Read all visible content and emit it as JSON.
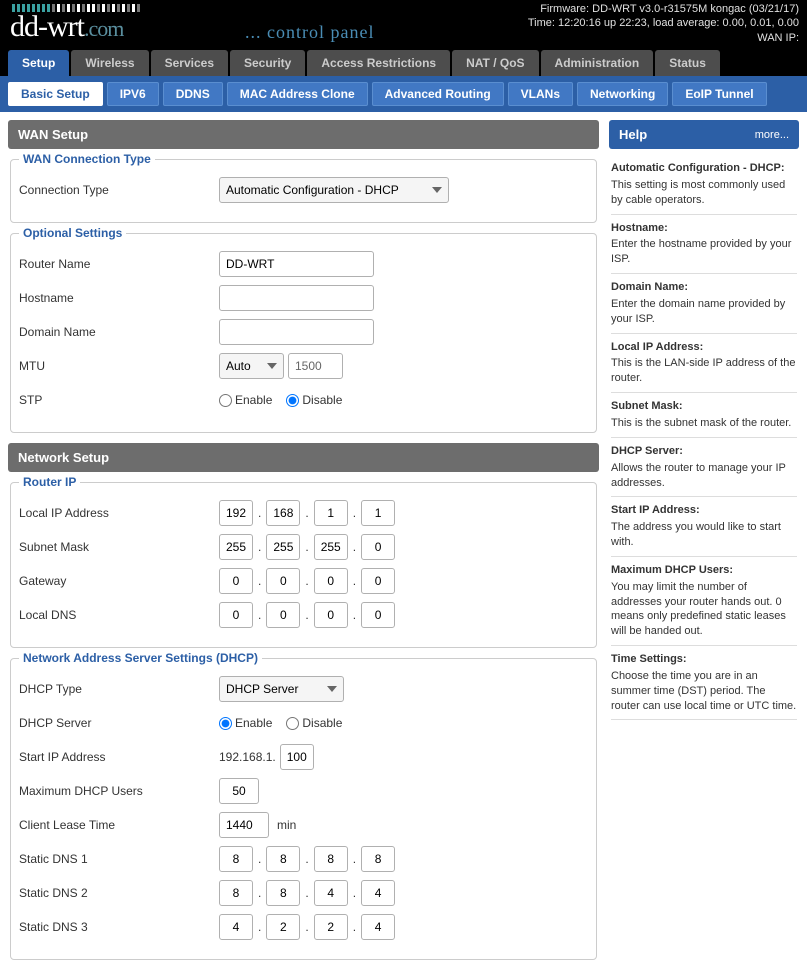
{
  "header": {
    "logo_main": "dd-wrt",
    "logo_suffix": ".com",
    "control_panel": "... control panel",
    "firmware": "Firmware: DD-WRT v3.0-r31575M kongac (03/21/17)",
    "time": "Time: 12:20:16 up 22:23, load average: 0.00, 0.01, 0.00",
    "wan_ip_label": "WAN IP:",
    "bar_colors": [
      "#3aa0a0",
      "#3aa0a0",
      "#3aa0a0",
      "#3aa0a0",
      "#3aa0a0",
      "#3aa0a0",
      "#3aa0a0",
      "#3aa0a0",
      "#777",
      "#fff",
      "#777",
      "#fff",
      "#777",
      "#fff",
      "#777",
      "#fff",
      "#fff",
      "#777",
      "#fff",
      "#777",
      "#fff",
      "#777",
      "#fff",
      "#777",
      "#fff",
      "#777"
    ]
  },
  "main_tabs": [
    "Setup",
    "Wireless",
    "Services",
    "Security",
    "Access Restrictions",
    "NAT / QoS",
    "Administration",
    "Status"
  ],
  "main_tab_active": 0,
  "sub_tabs": [
    "Basic Setup",
    "IPV6",
    "DDNS",
    "MAC Address Clone",
    "Advanced Routing",
    "VLANs",
    "Networking",
    "EoIP Tunnel"
  ],
  "sub_tab_active": 0,
  "wan": {
    "section_title": "WAN Setup",
    "fs1_title": "WAN Connection Type",
    "conn_type_label": "Connection Type",
    "conn_type_value": "Automatic Configuration - DHCP",
    "fs2_title": "Optional Settings",
    "router_name_label": "Router Name",
    "router_name_value": "DD-WRT",
    "hostname_label": "Hostname",
    "hostname_value": "",
    "domain_label": "Domain Name",
    "domain_value": "",
    "mtu_label": "MTU",
    "mtu_mode": "Auto",
    "mtu_value": "1500",
    "stp_label": "STP",
    "enable_text": "Enable",
    "disable_text": "Disable"
  },
  "net": {
    "section_title": "Network Setup",
    "fs1_title": "Router IP",
    "local_ip_label": "Local IP Address",
    "local_ip": [
      "192",
      "168",
      "1",
      "1"
    ],
    "subnet_label": "Subnet Mask",
    "subnet": [
      "255",
      "255",
      "255",
      "0"
    ],
    "gateway_label": "Gateway",
    "gateway": [
      "0",
      "0",
      "0",
      "0"
    ],
    "localdns_label": "Local DNS",
    "localdns": [
      "0",
      "0",
      "0",
      "0"
    ],
    "fs2_title": "Network Address Server Settings (DHCP)",
    "dhcp_type_label": "DHCP Type",
    "dhcp_type_value": "DHCP Server",
    "dhcp_server_label": "DHCP Server",
    "start_ip_label": "Start IP Address",
    "start_ip_prefix": "192.168.1.",
    "start_ip_value": "100",
    "max_users_label": "Maximum DHCP Users",
    "max_users_value": "50",
    "lease_label": "Client Lease Time",
    "lease_value": "1440",
    "lease_unit": "min",
    "dns1_label": "Static DNS 1",
    "dns1": [
      "8",
      "8",
      "8",
      "8"
    ],
    "dns2_label": "Static DNS 2",
    "dns2": [
      "8",
      "8",
      "4",
      "4"
    ],
    "dns3_label": "Static DNS 3",
    "dns3": [
      "4",
      "2",
      "2",
      "4"
    ]
  },
  "help": {
    "title": "Help",
    "more": "more...",
    "items": [
      {
        "title": "Automatic Configuration - DHCP:",
        "body": "This setting is most commonly used by cable operators."
      },
      {
        "title": "Hostname:",
        "body": "Enter the hostname provided by your ISP."
      },
      {
        "title": "Domain Name:",
        "body": "Enter the domain name provided by your ISP."
      },
      {
        "title": "Local IP Address:",
        "body": "This is the LAN-side IP address of the router."
      },
      {
        "title": "Subnet Mask:",
        "body": "This is the subnet mask of the router."
      },
      {
        "title": "DHCP Server:",
        "body": "Allows the router to manage your IP addresses."
      },
      {
        "title": "Start IP Address:",
        "body": "The address you would like to start with."
      },
      {
        "title": "Maximum DHCP Users:",
        "body": "You may limit the number of addresses your router hands out. 0 means only predefined static leases will be handed out."
      },
      {
        "title": "Time Settings:",
        "body": "Choose the time you are in an summer time (DST) period. The router can use local time or UTC time."
      }
    ]
  }
}
